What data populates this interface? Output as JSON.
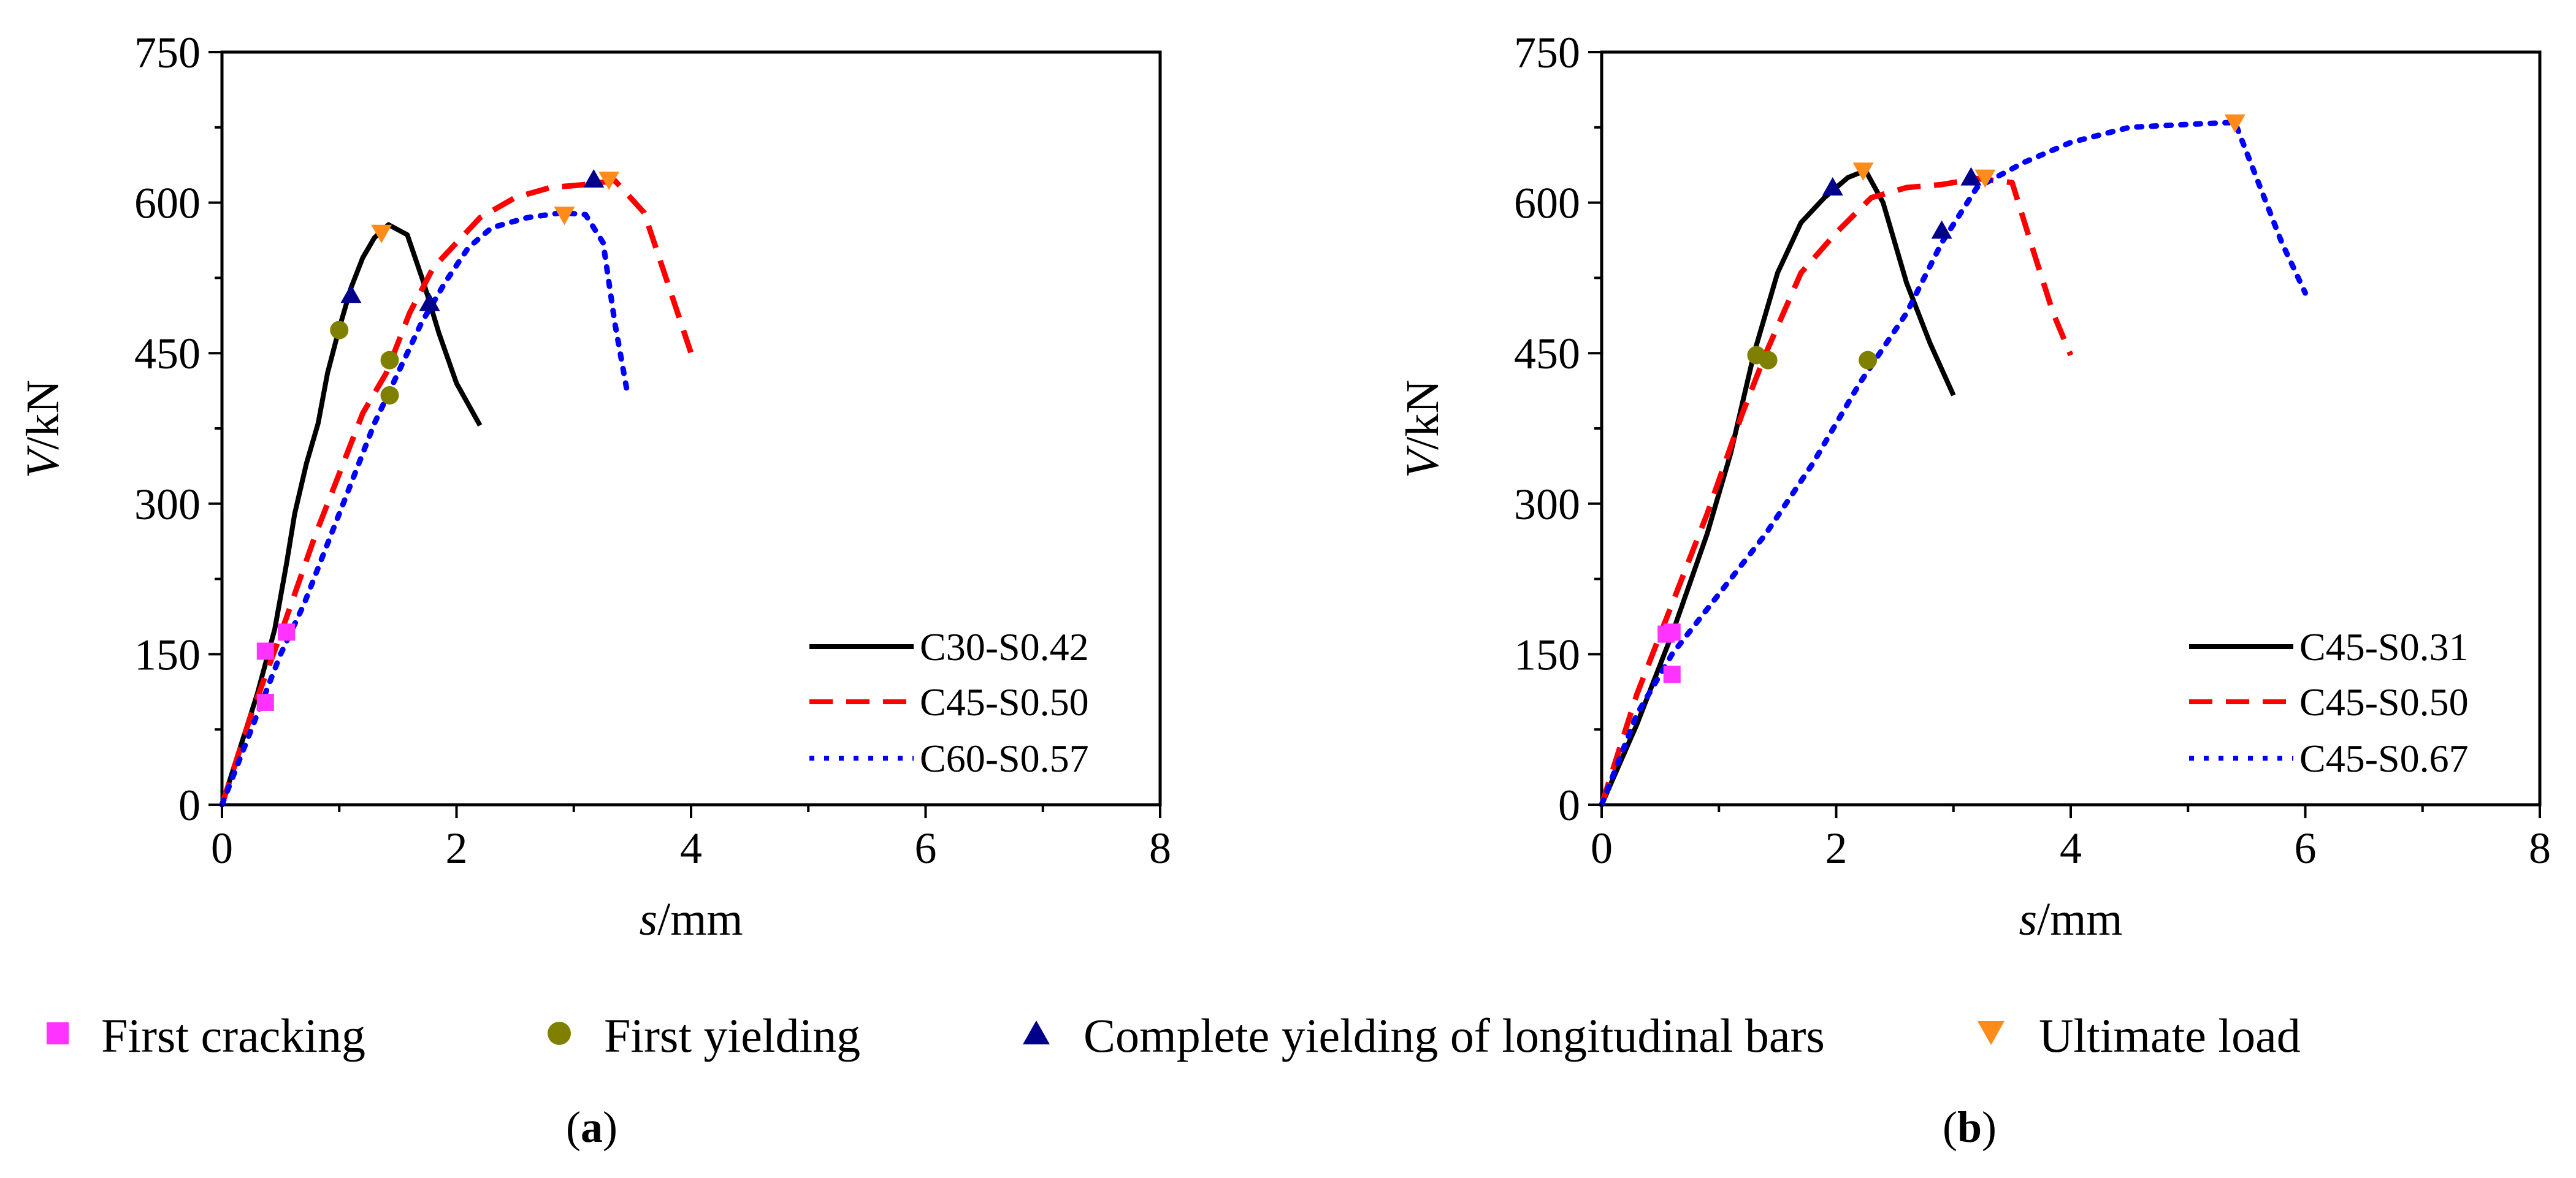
{
  "figure": {
    "marker_legend": [
      {
        "key": "cracking",
        "label": "First cracking",
        "shape": "square",
        "color": "#ff33ff"
      },
      {
        "key": "yielding",
        "label": "First yielding",
        "shape": "circle",
        "color": "#808000"
      },
      {
        "key": "complete",
        "label": "Complete yielding of  longitudinal bars",
        "shape": "triangle-up",
        "color": "#00008b"
      },
      {
        "key": "ultimate",
        "label": "Ultimate load",
        "shape": "triangle-down",
        "color": "#ff8c1a"
      }
    ]
  },
  "chart_data": [
    {
      "type": "line",
      "panel_label": "a",
      "xlabel_italic": "s",
      "xlabel_unit": "/mm",
      "ylabel_italic": "V",
      "ylabel_unit": "/kN",
      "xlim": [
        0,
        8
      ],
      "ylim": [
        0,
        750
      ],
      "xticks": [
        "0",
        "2",
        "4",
        "6",
        "8"
      ],
      "yticks": [
        "0",
        "150",
        "300",
        "450",
        "600",
        "750"
      ],
      "legend_position": "bottom-right",
      "series": [
        {
          "name": "C30-S0.42",
          "color": "#000000",
          "style": "solid",
          "points": [
            [
              0,
              0
            ],
            [
              0.3,
              110
            ],
            [
              0.45,
              175
            ],
            [
              0.55,
              240
            ],
            [
              0.62,
              290
            ],
            [
              0.72,
              340
            ],
            [
              0.82,
              380
            ],
            [
              0.9,
              430
            ],
            [
              1.0,
              475
            ],
            [
              1.1,
              515
            ],
            [
              1.2,
              545
            ],
            [
              1.3,
              565
            ],
            [
              1.42,
              578
            ],
            [
              1.58,
              568
            ],
            [
              1.72,
              520
            ],
            [
              1.85,
              470
            ],
            [
              2.0,
              420
            ],
            [
              2.2,
              378
            ]
          ]
        },
        {
          "name": "C45-S0.50",
          "color": "#ff0000",
          "style": "dashed",
          "points": [
            [
              0,
              0
            ],
            [
              0.25,
              90
            ],
            [
              0.5,
              170
            ],
            [
              0.8,
              270
            ],
            [
              1.0,
              330
            ],
            [
              1.2,
              390
            ],
            [
              1.4,
              430
            ],
            [
              1.6,
              490
            ],
            [
              1.8,
              535
            ],
            [
              2.0,
              560
            ],
            [
              2.2,
              585
            ],
            [
              2.5,
              605
            ],
            [
              2.8,
              615
            ],
            [
              3.1,
              618
            ],
            [
              3.35,
              622
            ],
            [
              3.6,
              590
            ],
            [
              3.8,
              520
            ],
            [
              4.0,
              450
            ]
          ]
        },
        {
          "name": "C60-S0.57",
          "color": "#0000ff",
          "style": "dotted",
          "points": [
            [
              0,
              0
            ],
            [
              0.3,
              90
            ],
            [
              0.5,
              150
            ],
            [
              0.7,
              200
            ],
            [
              0.9,
              260
            ],
            [
              1.1,
              320
            ],
            [
              1.3,
              380
            ],
            [
              1.5,
              430
            ],
            [
              1.7,
              480
            ],
            [
              1.9,
              520
            ],
            [
              2.1,
              555
            ],
            [
              2.3,
              575
            ],
            [
              2.6,
              585
            ],
            [
              2.9,
              590
            ],
            [
              3.1,
              588
            ],
            [
              3.25,
              560
            ],
            [
              3.35,
              480
            ],
            [
              3.45,
              415
            ]
          ]
        }
      ],
      "markers": [
        {
          "key": "cracking",
          "points": [
            [
              0.37,
              153
            ],
            [
              0.37,
              102
            ],
            [
              0.55,
              172
            ]
          ]
        },
        {
          "key": "yielding",
          "points": [
            [
              1.0,
              473
            ],
            [
              1.43,
              443
            ],
            [
              1.43,
              408
            ]
          ]
        },
        {
          "key": "complete",
          "points": [
            [
              1.1,
              508
            ],
            [
              1.77,
              500
            ],
            [
              3.17,
              623
            ]
          ]
        },
        {
          "key": "ultimate",
          "points": [
            [
              1.36,
              570
            ],
            [
              2.92,
              588
            ],
            [
              3.3,
              623
            ]
          ]
        }
      ]
    },
    {
      "type": "line",
      "panel_label": "b",
      "xlabel_italic": "s",
      "xlabel_unit": "/mm",
      "ylabel_italic": "V",
      "ylabel_unit": "/kN",
      "xlim": [
        0,
        8
      ],
      "ylim": [
        0,
        750
      ],
      "xticks": [
        "0",
        "2",
        "4",
        "6",
        "8"
      ],
      "yticks": [
        "0",
        "150",
        "300",
        "450",
        "600",
        "750"
      ],
      "legend_position": "bottom-right",
      "series": [
        {
          "name": "C45-S0.31",
          "color": "#000000",
          "style": "solid",
          "points": [
            [
              0,
              0
            ],
            [
              0.3,
              80
            ],
            [
              0.6,
              170
            ],
            [
              0.9,
              270
            ],
            [
              1.1,
              350
            ],
            [
              1.3,
              450
            ],
            [
              1.5,
              530
            ],
            [
              1.7,
              580
            ],
            [
              1.9,
              605
            ],
            [
              2.1,
              625
            ],
            [
              2.25,
              632
            ],
            [
              2.4,
              600
            ],
            [
              2.6,
              520
            ],
            [
              2.8,
              460
            ],
            [
              3.0,
              408
            ]
          ]
        },
        {
          "name": "C45-S0.50",
          "color": "#ff0000",
          "style": "dashed",
          "points": [
            [
              0,
              0
            ],
            [
              0.3,
              110
            ],
            [
              0.6,
              200
            ],
            [
              0.9,
              290
            ],
            [
              1.2,
              390
            ],
            [
              1.4,
              450
            ],
            [
              1.7,
              530
            ],
            [
              2.0,
              570
            ],
            [
              2.3,
              605
            ],
            [
              2.6,
              615
            ],
            [
              2.9,
              618
            ],
            [
              3.2,
              624
            ],
            [
              3.5,
              620
            ],
            [
              3.7,
              545
            ],
            [
              3.85,
              490
            ],
            [
              4.0,
              448
            ]
          ]
        },
        {
          "name": "C45-S0.67",
          "color": "#0000ff",
          "style": "dotted",
          "points": [
            [
              0,
              0
            ],
            [
              0.3,
              90
            ],
            [
              0.6,
              150
            ],
            [
              1.0,
              210
            ],
            [
              1.4,
              270
            ],
            [
              1.8,
              340
            ],
            [
              2.2,
              420
            ],
            [
              2.6,
              490
            ],
            [
              2.9,
              560
            ],
            [
              3.2,
              615
            ],
            [
              3.6,
              640
            ],
            [
              4.0,
              660
            ],
            [
              4.5,
              675
            ],
            [
              5.0,
              678
            ],
            [
              5.4,
              680
            ],
            [
              5.6,
              620
            ],
            [
              5.8,
              560
            ],
            [
              6.0,
              510
            ]
          ]
        }
      ],
      "markers": [
        {
          "key": "cracking",
          "points": [
            [
              0.55,
              170
            ],
            [
              0.6,
              172
            ],
            [
              0.6,
              130
            ]
          ]
        },
        {
          "key": "yielding",
          "points": [
            [
              1.32,
              448
            ],
            [
              1.42,
              443
            ],
            [
              2.27,
              443
            ]
          ]
        },
        {
          "key": "complete",
          "points": [
            [
              1.97,
              615
            ],
            [
              2.9,
              572
            ],
            [
              3.15,
              625
            ]
          ]
        },
        {
          "key": "ultimate",
          "points": [
            [
              2.23,
              632
            ],
            [
              3.27,
              625
            ],
            [
              5.4,
              680
            ]
          ]
        }
      ]
    }
  ]
}
